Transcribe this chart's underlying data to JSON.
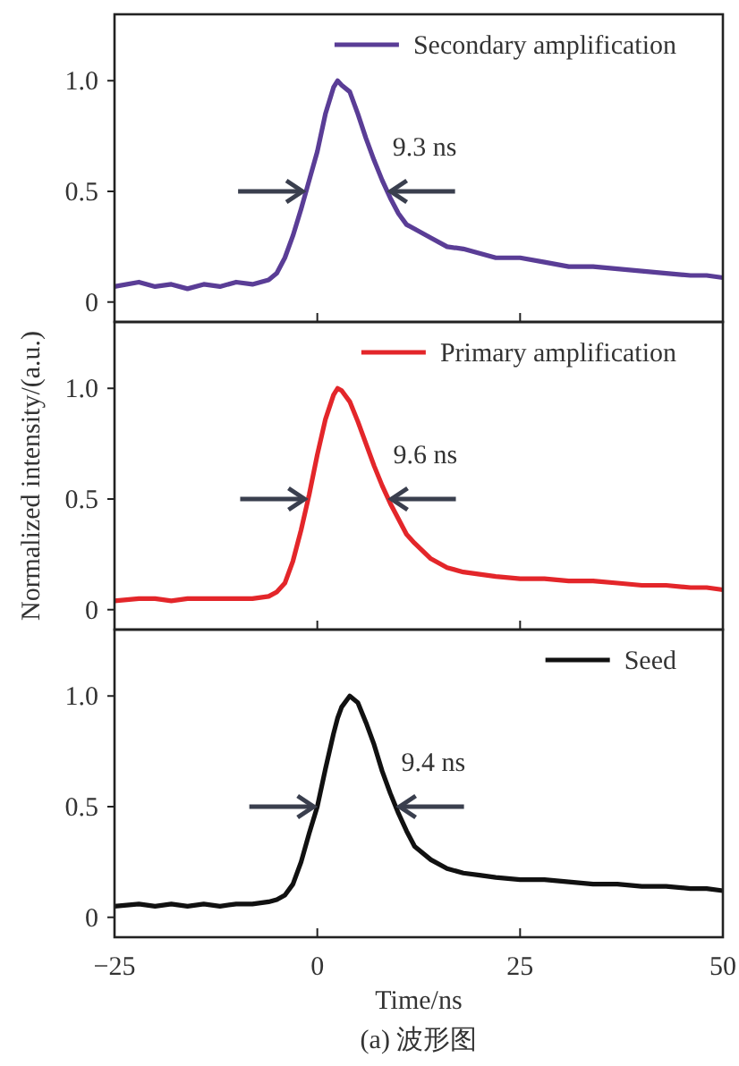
{
  "chart_data": [
    {
      "type": "line",
      "xlim": [
        -25,
        50
      ],
      "xticks": [
        -25,
        0,
        25,
        50
      ],
      "ylim": [
        -0.09,
        1.3
      ],
      "yticks": [
        {
          "value": 0,
          "label": "0"
        },
        {
          "value": 0.5,
          "label": "0.5"
        },
        {
          "value": 1,
          "label": "1.0"
        }
      ],
      "tick_labels": "y",
      "legend": "top right",
      "x": [
        -25,
        -22,
        -20,
        -18,
        -16,
        -14,
        -12,
        -10,
        -8,
        -6,
        -5,
        -4,
        -3,
        -2,
        -1,
        0,
        1,
        2,
        2.5,
        3,
        4,
        5,
        6,
        7,
        8,
        9,
        10,
        11,
        12,
        14,
        16,
        18,
        20,
        22,
        25,
        28,
        31,
        34,
        37,
        40,
        43,
        46,
        48,
        50
      ],
      "series": [
        {
          "name": "Secondary amplification",
          "color": "#5a3d96",
          "values": [
            0.07,
            0.09,
            0.07,
            0.08,
            0.06,
            0.08,
            0.07,
            0.09,
            0.08,
            0.1,
            0.13,
            0.2,
            0.3,
            0.42,
            0.55,
            0.68,
            0.85,
            0.97,
            1.0,
            0.98,
            0.95,
            0.85,
            0.74,
            0.64,
            0.55,
            0.47,
            0.4,
            0.35,
            0.33,
            0.29,
            0.25,
            0.24,
            0.22,
            0.2,
            0.2,
            0.18,
            0.16,
            0.16,
            0.15,
            0.14,
            0.13,
            0.12,
            0.12,
            0.11
          ]
        }
      ],
      "annotations": [
        {
          "text": "9.3 ns",
          "x": 8.6,
          "y": 0.5
        }
      ]
    },
    {
      "type": "line",
      "xlim": [
        -25,
        50
      ],
      "xticks": [
        -25,
        0,
        25,
        50
      ],
      "ylim": [
        -0.09,
        1.3
      ],
      "yticks": [
        {
          "value": 0,
          "label": "0"
        },
        {
          "value": 0.5,
          "label": "0.5"
        },
        {
          "value": 1,
          "label": "1.0"
        }
      ],
      "tick_labels": "y",
      "legend": "top right",
      "ylabel": "Normalized intensity/(a.u.)",
      "x": [
        -25,
        -22,
        -20,
        -18,
        -16,
        -14,
        -12,
        -10,
        -8,
        -6,
        -5,
        -4,
        -3,
        -2,
        -1,
        0,
        1,
        2,
        2.5,
        3,
        4,
        5,
        6,
        7,
        8,
        9,
        10,
        11,
        12,
        14,
        16,
        18,
        20,
        22,
        25,
        28,
        31,
        34,
        37,
        40,
        43,
        46,
        48,
        50
      ],
      "series": [
        {
          "name": "Primary amplification",
          "color": "#e3262a",
          "values": [
            0.04,
            0.05,
            0.05,
            0.04,
            0.05,
            0.05,
            0.05,
            0.05,
            0.05,
            0.06,
            0.08,
            0.12,
            0.22,
            0.36,
            0.52,
            0.7,
            0.86,
            0.97,
            1.0,
            0.99,
            0.94,
            0.85,
            0.75,
            0.65,
            0.56,
            0.48,
            0.41,
            0.34,
            0.3,
            0.23,
            0.19,
            0.17,
            0.16,
            0.15,
            0.14,
            0.14,
            0.13,
            0.13,
            0.12,
            0.11,
            0.11,
            0.1,
            0.1,
            0.09
          ]
        }
      ],
      "annotations": [
        {
          "text": "9.6 ns",
          "x": 8.7,
          "y": 0.5
        }
      ]
    },
    {
      "type": "line",
      "xlim": [
        -25,
        50
      ],
      "xticks": [
        -25,
        0,
        25,
        50
      ],
      "ylim": [
        -0.09,
        1.3
      ],
      "yticks": [
        {
          "value": 0,
          "label": "0"
        },
        {
          "value": 0.5,
          "label": "0.5"
        },
        {
          "value": 1,
          "label": "1.0"
        }
      ],
      "legend": "top right",
      "xlabel": "Time/ns",
      "x": [
        -25,
        -22,
        -20,
        -18,
        -16,
        -14,
        -12,
        -10,
        -8,
        -6,
        -5,
        -4,
        -3,
        -2,
        -1,
        0,
        1,
        2,
        2.5,
        3,
        4,
        5,
        6,
        7,
        8,
        9,
        10,
        11,
        12,
        14,
        16,
        18,
        20,
        22,
        25,
        28,
        31,
        34,
        37,
        40,
        43,
        46,
        48,
        50
      ],
      "series": [
        {
          "name": "Seed",
          "color": "#111111",
          "values": [
            0.05,
            0.06,
            0.05,
            0.06,
            0.05,
            0.06,
            0.05,
            0.06,
            0.06,
            0.07,
            0.08,
            0.1,
            0.15,
            0.25,
            0.38,
            0.5,
            0.67,
            0.83,
            0.9,
            0.95,
            1.0,
            0.97,
            0.88,
            0.78,
            0.66,
            0.56,
            0.47,
            0.39,
            0.32,
            0.26,
            0.22,
            0.2,
            0.19,
            0.18,
            0.17,
            0.17,
            0.16,
            0.15,
            0.15,
            0.14,
            0.14,
            0.13,
            0.13,
            0.12
          ]
        }
      ],
      "annotations": [
        {
          "text": "9.4 ns",
          "x": 9.7,
          "y": 0.5
        },
        "(a) 波形图"
      ]
    }
  ]
}
